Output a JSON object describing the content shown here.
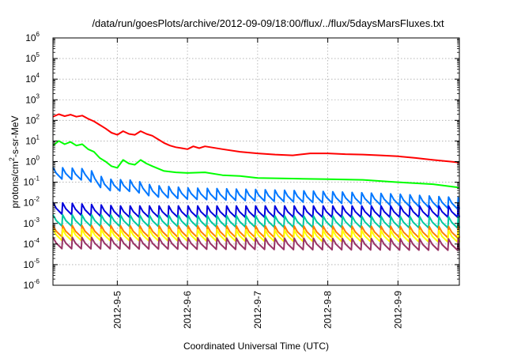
{
  "chart_data": {
    "type": "line",
    "title": "/data/run/goesPlots/archive/2012-09-09/18:00/flux/../flux/5daysMarsFluxes.txt",
    "xlabel": "Coordinated Universal Time (UTC)",
    "ylabel": "protons/cm²-s-sr-MeV",
    "ylabel_parts": {
      "before": "protons/cm",
      "sup": "2",
      "after": "-s-sr-MeV"
    },
    "y_scale": "log",
    "ylim": [
      1e-06,
      1000000.0
    ],
    "y_tick_base": "10",
    "y_ticks": [
      {
        "exp": "-6",
        "value": 1e-06
      },
      {
        "exp": "-5",
        "value": 1e-05
      },
      {
        "exp": "-4",
        "value": 0.0001
      },
      {
        "exp": "-3",
        "value": 0.001
      },
      {
        "exp": "-2",
        "value": 0.01
      },
      {
        "exp": "-1",
        "value": 0.1
      },
      {
        "exp": "0",
        "value": 1
      },
      {
        "exp": "1",
        "value": 10
      },
      {
        "exp": "2",
        "value": 100
      },
      {
        "exp": "3",
        "value": 1000
      },
      {
        "exp": "4",
        "value": 10000
      },
      {
        "exp": "5",
        "value": 100000
      },
      {
        "exp": "6",
        "value": 1000000
      }
    ],
    "xlim": [
      "2012-09-04T02:00",
      "2012-09-09T21:00"
    ],
    "x_ticks": [
      {
        "label": "2012-9-5",
        "value": "2012-09-05T00:00"
      },
      {
        "label": "2012-9-6",
        "value": "2012-09-06T00:00"
      },
      {
        "label": "2012-9-7",
        "value": "2012-09-07T00:00"
      },
      {
        "label": "2012-9-8",
        "value": "2012-09-08T00:00"
      },
      {
        "label": "2012-9-9",
        "value": "2012-09-09T00:00"
      }
    ],
    "grid": true,
    "legend": "none",
    "series": [
      {
        "color": "#ff0000",
        "pattern": "smooth",
        "points": [
          [
            "2012-09-04T02:00",
            150
          ],
          [
            "2012-09-04T04:00",
            200
          ],
          [
            "2012-09-04T06:00",
            160
          ],
          [
            "2012-09-04T08:00",
            190
          ],
          [
            "2012-09-04T10:00",
            150
          ],
          [
            "2012-09-04T12:00",
            170
          ],
          [
            "2012-09-04T14:00",
            120
          ],
          [
            "2012-09-04T16:00",
            90
          ],
          [
            "2012-09-04T18:00",
            60
          ],
          [
            "2012-09-04T20:00",
            40
          ],
          [
            "2012-09-04T22:00",
            25
          ],
          [
            "2012-09-05T00:00",
            20
          ],
          [
            "2012-09-05T02:00",
            30
          ],
          [
            "2012-09-05T04:00",
            22
          ],
          [
            "2012-09-05T06:00",
            20
          ],
          [
            "2012-09-05T08:00",
            30
          ],
          [
            "2012-09-05T10:00",
            22
          ],
          [
            "2012-09-05T12:00",
            18
          ],
          [
            "2012-09-05T14:00",
            12
          ],
          [
            "2012-09-05T16:00",
            8
          ],
          [
            "2012-09-05T18:00",
            6
          ],
          [
            "2012-09-05T20:00",
            5
          ],
          [
            "2012-09-05T22:00",
            4.5
          ],
          [
            "2012-09-06T00:00",
            4
          ],
          [
            "2012-09-06T02:00",
            5.5
          ],
          [
            "2012-09-06T04:00",
            4.5
          ],
          [
            "2012-09-06T06:00",
            5.5
          ],
          [
            "2012-09-06T12:00",
            4
          ],
          [
            "2012-09-06T18:00",
            3
          ],
          [
            "2012-09-07T00:00",
            2.5
          ],
          [
            "2012-09-07T06:00",
            2.2
          ],
          [
            "2012-09-07T12:00",
            2
          ],
          [
            "2012-09-07T18:00",
            2.5
          ],
          [
            "2012-09-08T00:00",
            2.5
          ],
          [
            "2012-09-08T06:00",
            2.3
          ],
          [
            "2012-09-08T12:00",
            2.2
          ],
          [
            "2012-09-08T18:00",
            2
          ],
          [
            "2012-09-09T00:00",
            1.8
          ],
          [
            "2012-09-09T06:00",
            1.5
          ],
          [
            "2012-09-09T12:00",
            1.2
          ],
          [
            "2012-09-09T18:00",
            1
          ],
          [
            "2012-09-09T21:00",
            0.9
          ]
        ]
      },
      {
        "color": "#00ff00",
        "pattern": "smooth",
        "points": [
          [
            "2012-09-04T02:00",
            6
          ],
          [
            "2012-09-04T04:00",
            10
          ],
          [
            "2012-09-04T06:00",
            7
          ],
          [
            "2012-09-04T08:00",
            9
          ],
          [
            "2012-09-04T10:00",
            6
          ],
          [
            "2012-09-04T12:00",
            7
          ],
          [
            "2012-09-04T14:00",
            4
          ],
          [
            "2012-09-04T16:00",
            3
          ],
          [
            "2012-09-04T18:00",
            1.5
          ],
          [
            "2012-09-04T20:00",
            1
          ],
          [
            "2012-09-04T22:00",
            0.6
          ],
          [
            "2012-09-05T00:00",
            0.5
          ],
          [
            "2012-09-05T02:00",
            1.2
          ],
          [
            "2012-09-05T04:00",
            0.8
          ],
          [
            "2012-09-05T06:00",
            0.7
          ],
          [
            "2012-09-05T08:00",
            1.2
          ],
          [
            "2012-09-05T10:00",
            0.8
          ],
          [
            "2012-09-05T12:00",
            0.6
          ],
          [
            "2012-09-05T16:00",
            0.35
          ],
          [
            "2012-09-05T20:00",
            0.3
          ],
          [
            "2012-09-06T00:00",
            0.28
          ],
          [
            "2012-09-06T06:00",
            0.3
          ],
          [
            "2012-09-06T12:00",
            0.22
          ],
          [
            "2012-09-06T18:00",
            0.2
          ],
          [
            "2012-09-07T00:00",
            0.16
          ],
          [
            "2012-09-07T12:00",
            0.15
          ],
          [
            "2012-09-08T00:00",
            0.14
          ],
          [
            "2012-09-08T12:00",
            0.13
          ],
          [
            "2012-09-09T00:00",
            0.1
          ],
          [
            "2012-09-09T12:00",
            0.08
          ],
          [
            "2012-09-09T21:00",
            0.055
          ]
        ]
      },
      {
        "color": "#0077ff",
        "pattern": "sawtooth",
        "points": [
          [
            "2012-09-04T02:00",
            0.3
          ],
          [
            "2012-09-04T14:00",
            0.25
          ],
          [
            "2012-09-04T20:00",
            0.08
          ],
          [
            "2012-09-05T06:00",
            0.07
          ],
          [
            "2012-09-05T12:00",
            0.04
          ],
          [
            "2012-09-06T00:00",
            0.03
          ],
          [
            "2012-09-07T00:00",
            0.025
          ],
          [
            "2012-09-08T00:00",
            0.02
          ],
          [
            "2012-09-09T00:00",
            0.015
          ],
          [
            "2012-09-09T21:00",
            0.01
          ]
        ]
      },
      {
        "color": "#0000dd",
        "pattern": "sawtooth",
        "points": [
          [
            "2012-09-04T02:00",
            0.006
          ],
          [
            "2012-09-05T00:00",
            0.004
          ],
          [
            "2012-09-06T00:00",
            0.004
          ],
          [
            "2012-09-07T00:00",
            0.004
          ],
          [
            "2012-09-08T00:00",
            0.004
          ],
          [
            "2012-09-09T00:00",
            0.004
          ],
          [
            "2012-09-09T21:00",
            0.004
          ]
        ]
      },
      {
        "color": "#00c8a0",
        "pattern": "sawtooth",
        "points": [
          [
            "2012-09-04T02:00",
            0.0015
          ],
          [
            "2012-09-09T21:00",
            0.0012
          ]
        ]
      },
      {
        "color": "#ff7f00",
        "pattern": "sawtooth",
        "points": [
          [
            "2012-09-04T02:00",
            0.00045
          ],
          [
            "2012-09-09T21:00",
            0.0004
          ]
        ]
      },
      {
        "color": "#ffff00",
        "pattern": "sawtooth",
        "points": [
          [
            "2012-09-04T02:00",
            0.0003
          ],
          [
            "2012-09-09T21:00",
            0.00025
          ]
        ]
      },
      {
        "color": "#993366",
        "pattern": "sawtooth",
        "points": [
          [
            "2012-09-04T02:00",
            0.00012
          ],
          [
            "2012-09-09T21:00",
            0.0001
          ]
        ]
      }
    ]
  }
}
